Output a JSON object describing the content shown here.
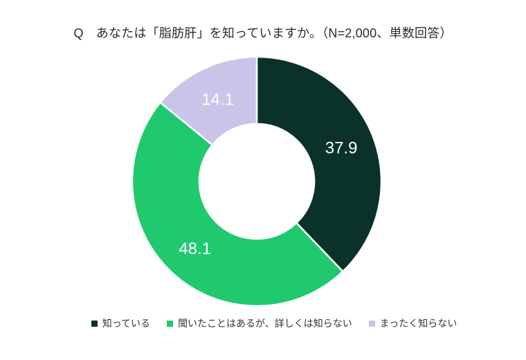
{
  "title": "Q　あなたは「脂肪肝」を知っていますか。（N=2,000、単数回答）",
  "chart_data": {
    "type": "pie",
    "subtype": "donut",
    "title": "Q　あなたは「脂肪肝」を知っていますか。（N=2,000、単数回答）",
    "labels": [
      "知っている",
      "聞いたことはあるが、詳しくは知らない",
      "まったく知らない"
    ],
    "values": [
      37.9,
      48.1,
      14.1
    ],
    "colors": [
      "#0b322a",
      "#21c96e",
      "#c9c5e9"
    ],
    "unit": "%",
    "start_angle_deg": 0,
    "direction": "clockwise",
    "hole_ratio": 0.46,
    "label_color": "#ffffff",
    "legend_position": "bottom",
    "grid": "off"
  }
}
